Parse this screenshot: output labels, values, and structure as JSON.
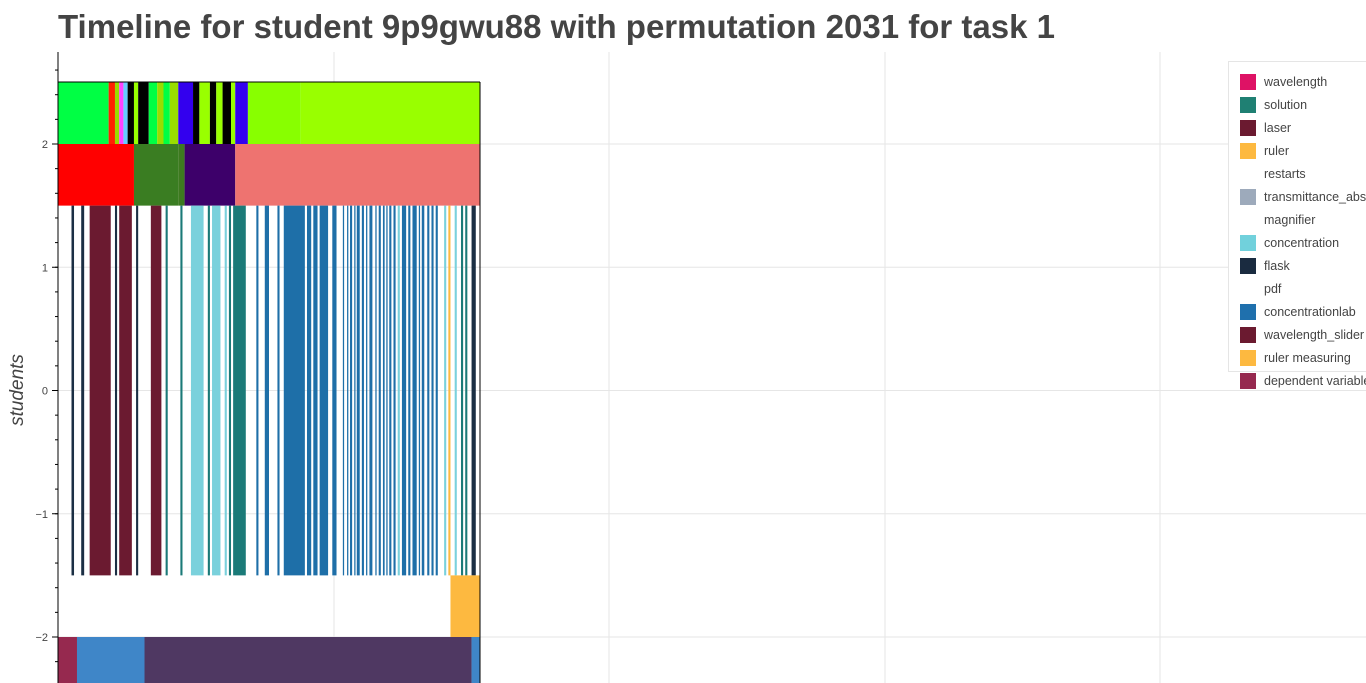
{
  "title": "Timeline for student 9p9gwu88 with permutation 2031 for task 1",
  "chart_data": {
    "type": "timeline",
    "title": "Timeline for student 9p9gwu88 with permutation 2031 for task 1",
    "ylabel": "students",
    "xlabel": "",
    "xlim": [
      0,
      1
    ],
    "ylim": [
      -2.45,
      2.75
    ],
    "yticks": [
      2,
      1,
      0,
      -1,
      -2
    ],
    "ytick_labels": [
      "2",
      "1",
      "0",
      "−1",
      "−2"
    ],
    "x_gridlines": 4,
    "grid": true,
    "legend_position": "top-right",
    "rows": [
      {
        "y_range": [
          2.0,
          2.5
        ],
        "segments": [
          {
            "x0": 0.0,
            "x1": 0.12,
            "color": "#00ff44"
          },
          {
            "x0": 0.12,
            "x1": 0.135,
            "color": "#ff2200"
          },
          {
            "x0": 0.135,
            "x1": 0.145,
            "color": "#99dd00"
          },
          {
            "x0": 0.145,
            "x1": 0.155,
            "color": "#ff44ff"
          },
          {
            "x0": 0.155,
            "x1": 0.165,
            "color": "#66ccff"
          },
          {
            "x0": 0.165,
            "x1": 0.18,
            "color": "#000000"
          },
          {
            "x0": 0.18,
            "x1": 0.19,
            "color": "#99ff00"
          },
          {
            "x0": 0.19,
            "x1": 0.215,
            "color": "#000000"
          },
          {
            "x0": 0.215,
            "x1": 0.235,
            "color": "#00ff44"
          },
          {
            "x0": 0.235,
            "x1": 0.25,
            "color": "#99dd00"
          },
          {
            "x0": 0.25,
            "x1": 0.265,
            "color": "#00ff44"
          },
          {
            "x0": 0.265,
            "x1": 0.285,
            "color": "#99dd00"
          },
          {
            "x0": 0.285,
            "x1": 0.32,
            "color": "#3300ee"
          },
          {
            "x0": 0.32,
            "x1": 0.335,
            "color": "#000000"
          },
          {
            "x0": 0.335,
            "x1": 0.36,
            "color": "#99ff00"
          },
          {
            "x0": 0.36,
            "x1": 0.375,
            "color": "#000000"
          },
          {
            "x0": 0.375,
            "x1": 0.39,
            "color": "#99ff00"
          },
          {
            "x0": 0.39,
            "x1": 0.41,
            "color": "#000000"
          },
          {
            "x0": 0.41,
            "x1": 0.42,
            "color": "#99ff00"
          },
          {
            "x0": 0.42,
            "x1": 0.45,
            "color": "#3300ee"
          },
          {
            "x0": 0.45,
            "x1": 0.575,
            "color": "#88ff00"
          },
          {
            "x0": 0.575,
            "x1": 1.0,
            "color": "#99ff00"
          }
        ]
      },
      {
        "y_range": [
          1.5,
          2.0
        ],
        "segments": [
          {
            "x0": 0.0,
            "x1": 0.18,
            "color": "#ff0000"
          },
          {
            "x0": 0.18,
            "x1": 0.285,
            "color": "#3a7d22"
          },
          {
            "x0": 0.285,
            "x1": 0.3,
            "color": "#3d7a1f"
          },
          {
            "x0": 0.3,
            "x1": 0.42,
            "color": "#3d006a"
          },
          {
            "x0": 0.42,
            "x1": 1.0,
            "color": "#ee7370"
          }
        ]
      },
      {
        "y_range": [
          -1.5,
          1.5
        ],
        "segments": [
          {
            "x0": 0.032,
            "x1": 0.038,
            "color": "#1b2f44"
          },
          {
            "x0": 0.055,
            "x1": 0.062,
            "color": "#1b2f44"
          },
          {
            "x0": 0.075,
            "x1": 0.125,
            "color": "#6b1a30"
          },
          {
            "x0": 0.135,
            "x1": 0.14,
            "color": "#1b2f44"
          },
          {
            "x0": 0.145,
            "x1": 0.175,
            "color": "#6b1a30"
          },
          {
            "x0": 0.185,
            "x1": 0.19,
            "color": "#1b2f44"
          },
          {
            "x0": 0.22,
            "x1": 0.245,
            "color": "#6b1a30"
          },
          {
            "x0": 0.255,
            "x1": 0.26,
            "color": "#1b7a78"
          },
          {
            "x0": 0.29,
            "x1": 0.295,
            "color": "#1b7a78"
          },
          {
            "x0": 0.315,
            "x1": 0.345,
            "color": "#7ad1dc"
          },
          {
            "x0": 0.355,
            "x1": 0.36,
            "color": "#1b7a78"
          },
          {
            "x0": 0.365,
            "x1": 0.385,
            "color": "#7ad1dc"
          },
          {
            "x0": 0.395,
            "x1": 0.4,
            "color": "#7ad1dc"
          },
          {
            "x0": 0.405,
            "x1": 0.41,
            "color": "#1b7a78"
          },
          {
            "x0": 0.415,
            "x1": 0.445,
            "color": "#1b7a78"
          },
          {
            "x0": 0.47,
            "x1": 0.475,
            "color": "#1e6fa8"
          },
          {
            "x0": 0.49,
            "x1": 0.5,
            "color": "#1e6fa8"
          },
          {
            "x0": 0.52,
            "x1": 0.525,
            "color": "#1e6fa8"
          },
          {
            "x0": 0.535,
            "x1": 0.585,
            "color": "#1e6fa8"
          },
          {
            "x0": 0.59,
            "x1": 0.6,
            "color": "#1e6fa8"
          },
          {
            "x0": 0.605,
            "x1": 0.615,
            "color": "#1e6fa8"
          },
          {
            "x0": 0.62,
            "x1": 0.64,
            "color": "#1e6fa8"
          },
          {
            "x0": 0.65,
            "x1": 0.66,
            "color": "#1e6fa8"
          },
          {
            "x0": 0.675,
            "x1": 0.678,
            "color": "#1e6fa8"
          },
          {
            "x0": 0.685,
            "x1": 0.688,
            "color": "#1e6fa8"
          },
          {
            "x0": 0.692,
            "x1": 0.697,
            "color": "#1e6fa8"
          },
          {
            "x0": 0.702,
            "x1": 0.705,
            "color": "#1e6fa8"
          },
          {
            "x0": 0.708,
            "x1": 0.715,
            "color": "#1e6fa8"
          },
          {
            "x0": 0.72,
            "x1": 0.725,
            "color": "#1e6fa8"
          },
          {
            "x0": 0.73,
            "x1": 0.733,
            "color": "#1e6fa8"
          },
          {
            "x0": 0.738,
            "x1": 0.745,
            "color": "#1e6fa8"
          },
          {
            "x0": 0.752,
            "x1": 0.755,
            "color": "#1e6fa8"
          },
          {
            "x0": 0.76,
            "x1": 0.765,
            "color": "#1e6fa8"
          },
          {
            "x0": 0.77,
            "x1": 0.774,
            "color": "#1e6fa8"
          },
          {
            "x0": 0.778,
            "x1": 0.781,
            "color": "#1e6fa8"
          },
          {
            "x0": 0.785,
            "x1": 0.79,
            "color": "#1e6fa8"
          },
          {
            "x0": 0.795,
            "x1": 0.8,
            "color": "#1e6fa8"
          },
          {
            "x0": 0.805,
            "x1": 0.81,
            "color": "#7ad1dc"
          },
          {
            "x0": 0.815,
            "x1": 0.825,
            "color": "#1e6fa8"
          },
          {
            "x0": 0.83,
            "x1": 0.835,
            "color": "#1e6fa8"
          },
          {
            "x0": 0.84,
            "x1": 0.85,
            "color": "#1e6fa8"
          },
          {
            "x0": 0.855,
            "x1": 0.858,
            "color": "#1e6fa8"
          },
          {
            "x0": 0.862,
            "x1": 0.868,
            "color": "#1e6fa8"
          },
          {
            "x0": 0.875,
            "x1": 0.88,
            "color": "#1e6fa8"
          },
          {
            "x0": 0.885,
            "x1": 0.89,
            "color": "#1e6fa8"
          },
          {
            "x0": 0.895,
            "x1": 0.9,
            "color": "#1e6fa8"
          },
          {
            "x0": 0.915,
            "x1": 0.92,
            "color": "#7ad1dc"
          },
          {
            "x0": 0.925,
            "x1": 0.93,
            "color": "#fdb940"
          },
          {
            "x0": 0.94,
            "x1": 0.945,
            "color": "#7ad1dc"
          },
          {
            "x0": 0.955,
            "x1": 0.96,
            "color": "#1b7a78"
          },
          {
            "x0": 0.965,
            "x1": 0.97,
            "color": "#1b7a78"
          },
          {
            "x0": 0.98,
            "x1": 0.99,
            "color": "#1b2f44"
          }
        ]
      },
      {
        "y_range": [
          -2.0,
          -1.5
        ],
        "segments": [
          {
            "x0": 0.93,
            "x1": 1.0,
            "color": "#fdb940"
          }
        ]
      },
      {
        "y_range": [
          -2.45,
          -2.0
        ],
        "segments": [
          {
            "x0": 0.0,
            "x1": 0.045,
            "color": "#96294f"
          },
          {
            "x0": 0.045,
            "x1": 0.205,
            "color": "#3f86c8"
          },
          {
            "x0": 0.205,
            "x1": 0.98,
            "color": "#4f3862"
          },
          {
            "x0": 0.98,
            "x1": 1.0,
            "color": "#3f86c8"
          }
        ]
      }
    ],
    "legend": [
      {
        "label": "wavelength",
        "color": "#de1265"
      },
      {
        "label": "solution",
        "color": "#1f8073"
      },
      {
        "label": "laser",
        "color": "#6b1a30"
      },
      {
        "label": "ruler",
        "color": "#fdb940"
      },
      {
        "label": "restarts",
        "color": "#ffffff"
      },
      {
        "label": "transmittance_abs",
        "color": "#9daabb"
      },
      {
        "label": "magnifier",
        "color": "#ffffff"
      },
      {
        "label": "concentration",
        "color": "#71d1dc"
      },
      {
        "label": "flask",
        "color": "#1a2b40"
      },
      {
        "label": "pdf",
        "color": "#ffffff"
      },
      {
        "label": "concentrationlab",
        "color": "#1f70ad"
      },
      {
        "label": "wavelength_slider",
        "color": "#6b1a30"
      },
      {
        "label": "ruler measuring",
        "color": "#fdb940"
      },
      {
        "label": "dependent variable",
        "color": "#96294f"
      }
    ]
  }
}
